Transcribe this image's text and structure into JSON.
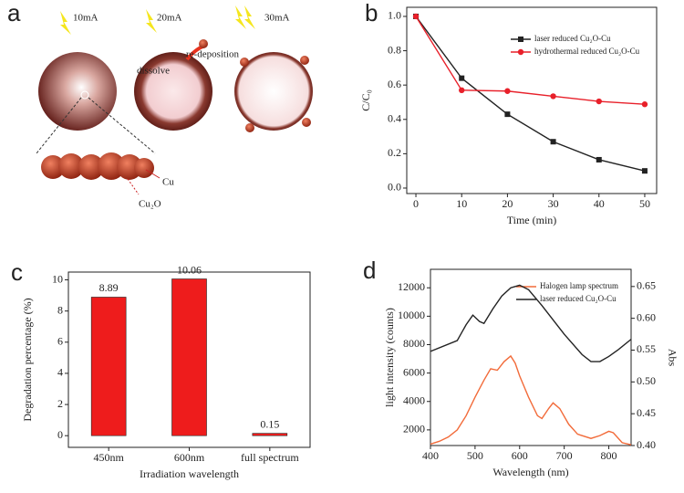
{
  "diagram": {
    "panel": "a",
    "currents": [
      "10mA",
      "20mA",
      "30mA"
    ],
    "dissolve": "dissolve",
    "redeposition": "re-deposition",
    "cu": "Cu",
    "cu2o": "Cu₂O"
  },
  "chart_data": [
    {
      "panel": "b",
      "type": "line",
      "x_label": "Time (min)",
      "y_label": "C/C₀",
      "x": [
        0,
        10,
        20,
        30,
        40,
        50
      ],
      "series": [
        {
          "name": "laser reduced Cu₂O-Cu",
          "color": "#222222",
          "marker": "square",
          "values": [
            1.0,
            0.64,
            0.43,
            0.27,
            0.165,
            0.1
          ]
        },
        {
          "name": "hydrothermal reduced Cu₂O-Cu",
          "color": "#e8202a",
          "marker": "circle",
          "values": [
            1.0,
            0.57,
            0.565,
            0.535,
            0.505,
            0.488
          ]
        }
      ],
      "xlim": [
        -2,
        52.6
      ],
      "ylim": [
        -0.032,
        1.053
      ],
      "xticks": [
        0,
        10,
        20,
        30,
        40,
        50
      ],
      "yticks": [
        {
          "value": 0,
          "label": "0.0"
        },
        0.2,
        0.4,
        0.6,
        0.8,
        {
          "value": 1,
          "label": "1.0"
        }
      ],
      "legend": "upper right"
    },
    {
      "panel": "c",
      "type": "bar",
      "x_label": "Irradiation wavelength",
      "y_label": "Degradation percentage (%)",
      "categories": [
        "450nm",
        "600nm",
        "full spectrum"
      ],
      "values": [
        8.89,
        10.06,
        0.15
      ],
      "color": "#ee1c1c",
      "ylim": [
        -0.75,
        10.5
      ],
      "yticks": [
        0,
        2,
        4,
        6,
        8,
        10
      ]
    },
    {
      "panel": "d",
      "type": "line",
      "x_label": "Wavelength (nm)",
      "y_label": "light intensity (counts)",
      "y2_label": "Abs",
      "series": [
        {
          "name": "Halogen lamp spectrum",
          "color": "#f26b3a",
          "marker": "none",
          "x": [
            400,
            420,
            440,
            460,
            480,
            500,
            520,
            535,
            550,
            565,
            580,
            590,
            600,
            620,
            640,
            650,
            665,
            675,
            690,
            710,
            730,
            760,
            780,
            800,
            810,
            830,
            850
          ],
          "values": [
            1000,
            1200,
            1500,
            2000,
            3000,
            4300,
            5500,
            6300,
            6200,
            6800,
            7200,
            6700,
            5800,
            4300,
            3000,
            2800,
            3500,
            3900,
            3500,
            2400,
            1700,
            1400,
            1600,
            1900,
            1800,
            1100,
            950
          ]
        },
        {
          "name": "laser reduced Cu₂O-Cu",
          "color": "#222222",
          "marker": "none",
          "axis": "y2",
          "x": [
            400,
            460,
            480,
            495,
            510,
            520,
            540,
            560,
            580,
            600,
            620,
            650,
            700,
            740,
            760,
            780,
            800,
            820,
            850
          ],
          "values": [
            0.548,
            0.565,
            0.59,
            0.605,
            0.595,
            0.592,
            0.615,
            0.635,
            0.648,
            0.652,
            0.645,
            0.62,
            0.575,
            0.543,
            0.532,
            0.532,
            0.54,
            0.55,
            0.567
          ]
        }
      ],
      "xlim": [
        400,
        850
      ],
      "xticks": [
        400,
        500,
        600,
        700,
        800
      ],
      "ylim": [
        900,
        13300
      ],
      "yticks": [
        2000,
        4000,
        6000,
        8000,
        10000,
        12000
      ],
      "y2lim": [
        0.4,
        0.677
      ],
      "y2ticks": [
        {
          "value": 0.4,
          "label": "0.40"
        },
        0.45,
        {
          "value": 0.5,
          "label": "0.50"
        },
        0.55,
        {
          "value": 0.6,
          "label": "0.60"
        },
        0.65
      ],
      "legend": "upper center"
    }
  ]
}
